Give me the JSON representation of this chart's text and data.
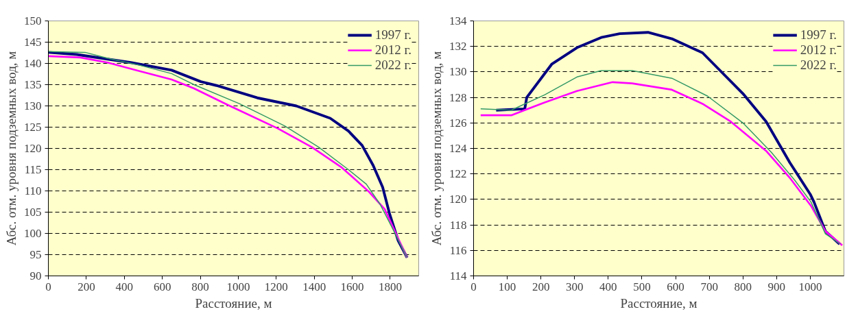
{
  "chart_data": [
    {
      "type": "line",
      "xlabel": "Расстояние, м",
      "ylabel": "Абс. отм. уровня подземных вод, м",
      "xlim": [
        0,
        1950
      ],
      "xticks": [
        0,
        200,
        400,
        600,
        800,
        1000,
        1200,
        1400,
        1600,
        1800
      ],
      "ylim": [
        90,
        150
      ],
      "yticks": [
        90,
        95,
        100,
        105,
        110,
        115,
        120,
        125,
        130,
        135,
        140,
        145,
        150
      ],
      "grid": "y",
      "legend": "top right",
      "line_style": "solid",
      "marker": "none",
      "series": [
        {
          "name": "1997 г.",
          "color": "#000080",
          "x": [
            0,
            150,
            312,
            434,
            649,
            803,
            885,
            1100,
            1305,
            1484,
            1580,
            1652,
            1710,
            1760,
            1796,
            1842,
            1889
          ],
          "values": [
            142.6,
            142.1,
            141.0,
            140.2,
            138.4,
            135.7,
            134.8,
            131.9,
            130.0,
            127.1,
            124.1,
            120.7,
            116.0,
            110.9,
            104.7,
            98.3,
            94.3
          ]
        },
        {
          "name": "2012 г.",
          "color": "#ff00ff",
          "x": [
            0,
            168,
            312,
            470,
            649,
            767,
            946,
            1208,
            1387,
            1545,
            1688,
            1771,
            1842,
            1889
          ],
          "values": [
            141.7,
            141.4,
            140.2,
            138.3,
            136.2,
            134.1,
            130.2,
            124.7,
            120.3,
            115.5,
            109.8,
            105.7,
            98.8,
            94.3
          ]
        },
        {
          "name": "2022 г.",
          "color": "#339966",
          "x": [
            0,
            194,
            312,
            470,
            649,
            767,
            1007,
            1244,
            1423,
            1580,
            1674,
            1746,
            1806,
            1889
          ],
          "values": [
            142.8,
            142.6,
            141.2,
            139.7,
            137.6,
            135.0,
            130.5,
            125.3,
            120.3,
            115.0,
            111.6,
            106.9,
            101.7,
            94.3
          ]
        }
      ]
    },
    {
      "type": "line",
      "xlabel": "Расстояние, м",
      "ylabel": "Абс. отм. уровня подземных вод, м",
      "xlim": [
        0,
        1100
      ],
      "xticks": [
        0,
        100,
        200,
        300,
        400,
        500,
        600,
        700,
        800,
        900,
        1000
      ],
      "ylim": [
        114,
        134
      ],
      "yticks": [
        114,
        116,
        118,
        120,
        122,
        124,
        126,
        128,
        130,
        132,
        134
      ],
      "grid": "y",
      "legend": "top right",
      "line_style": "solid",
      "marker": "none",
      "series": [
        {
          "name": "1997 г.",
          "color": "#000080",
          "x": [
            67,
            152,
            158,
            232,
            307,
            379,
            434,
            518,
            589,
            680,
            800,
            869,
            939,
            1000,
            1011,
            1045,
            1087
          ],
          "values": [
            127.0,
            127.1,
            128.0,
            130.6,
            131.9,
            132.7,
            133.0,
            133.1,
            132.6,
            131.5,
            128.3,
            126.1,
            122.9,
            120.4,
            119.8,
            117.5,
            116.5
          ]
        },
        {
          "name": "2012 г.",
          "color": "#ff00ff",
          "x": [
            21,
            112,
            211,
            307,
            413,
            471,
            589,
            680,
            764,
            869,
            939,
            1002,
            1045,
            1095
          ],
          "values": [
            126.6,
            126.6,
            127.6,
            128.5,
            129.2,
            129.1,
            128.6,
            127.5,
            126.1,
            123.8,
            121.7,
            119.5,
            117.5,
            116.4
          ]
        },
        {
          "name": "2022 г.",
          "color": "#339966",
          "x": [
            21,
            112,
            211,
            307,
            379,
            471,
            589,
            695,
            800,
            884,
            954,
            1002,
            1045,
            1090
          ],
          "values": [
            127.1,
            127.0,
            128.2,
            129.6,
            130.1,
            130.1,
            129.5,
            128.1,
            126.0,
            123.7,
            121.5,
            119.8,
            117.3,
            116.5
          ]
        }
      ]
    }
  ]
}
